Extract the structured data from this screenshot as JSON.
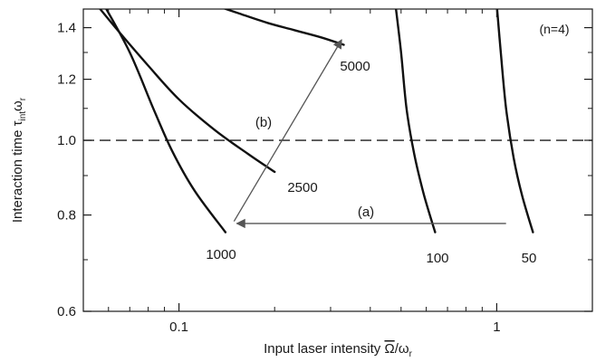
{
  "chart_data": {
    "type": "line",
    "title": "",
    "corner_note": "(n=4)",
    "xlabel": "Input laser intensity Ω̄/ωr",
    "ylabel": "Interaction time τintωr",
    "x_scale": "log",
    "y_scale": "log",
    "xlim": [
      0.05,
      2.0
    ],
    "ylim": [
      0.6,
      1.48
    ],
    "x_tick_labels": [
      {
        "value": 0.1,
        "label": "0.1"
      },
      {
        "value": 1,
        "label": "1"
      }
    ],
    "y_tick_labels": [
      {
        "value": 0.6,
        "label": "0.6"
      },
      {
        "value": 0.8,
        "label": "0.8"
      },
      {
        "value": 1.0,
        "label": "1.0"
      },
      {
        "value": 1.2,
        "label": "1.2"
      },
      {
        "value": 1.4,
        "label": "1.4"
      }
    ],
    "reference_line": {
      "y": 1.0,
      "style": "dashed"
    },
    "series": [
      {
        "label": "50",
        "points": [
          [
            1.0,
            1.5
          ],
          [
            1.03,
            1.3
          ],
          [
            1.07,
            1.1
          ],
          [
            1.13,
            0.95
          ],
          [
            1.2,
            0.85
          ],
          [
            1.3,
            0.76
          ]
        ]
      },
      {
        "label": "100",
        "points": [
          [
            0.48,
            1.5
          ],
          [
            0.5,
            1.3
          ],
          [
            0.52,
            1.1
          ],
          [
            0.55,
            0.96
          ],
          [
            0.59,
            0.85
          ],
          [
            0.64,
            0.76
          ]
        ]
      },
      {
        "label": "1000",
        "points": [
          [
            0.058,
            1.5
          ],
          [
            0.07,
            1.3
          ],
          [
            0.083,
            1.1
          ],
          [
            0.095,
            0.97
          ],
          [
            0.112,
            0.86
          ],
          [
            0.14,
            0.76
          ]
        ]
      },
      {
        "label": "2500",
        "points": [
          [
            0.055,
            1.5
          ],
          [
            0.065,
            1.38
          ],
          [
            0.08,
            1.25
          ],
          [
            0.1,
            1.13
          ],
          [
            0.13,
            1.03
          ],
          [
            0.165,
            0.96
          ],
          [
            0.2,
            0.91
          ]
        ]
      },
      {
        "label": "5000",
        "points": [
          [
            0.128,
            1.5
          ],
          [
            0.155,
            1.46
          ],
          [
            0.19,
            1.42
          ],
          [
            0.23,
            1.39
          ],
          [
            0.28,
            1.36
          ],
          [
            0.33,
            1.33
          ]
        ]
      }
    ],
    "arrows": [
      {
        "label": "(a)",
        "from": [
          1.07,
          0.78
        ],
        "to": [
          0.152,
          0.78
        ]
      },
      {
        "label": "(b)",
        "from": [
          0.149,
          0.785
        ],
        "to": [
          0.325,
          1.35
        ]
      }
    ]
  }
}
